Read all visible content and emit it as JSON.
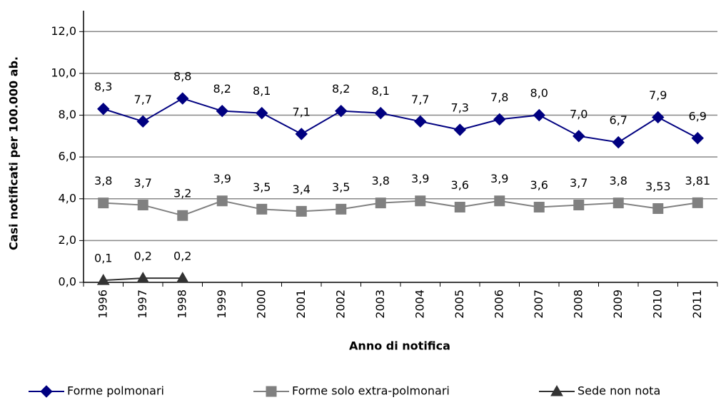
{
  "chart_data": {
    "type": "line",
    "x_label": "Anno di notifica",
    "y_label": "Casi notificati per 100.000 ab.",
    "categories": [
      "1996",
      "1997",
      "1998",
      "1999",
      "2000",
      "2001",
      "2002",
      "2003",
      "2004",
      "2005",
      "2006",
      "2007",
      "2008",
      "2009",
      "2010",
      "2011"
    ],
    "series": [
      {
        "name": "Forme polmonari",
        "color": "#000080",
        "marker": "diamond",
        "values": [
          8.3,
          7.7,
          8.8,
          8.2,
          8.1,
          7.1,
          8.2,
          8.1,
          7.7,
          7.3,
          7.8,
          8.0,
          7.0,
          6.7,
          7.9,
          6.9
        ],
        "value_labels": [
          "8,3",
          "7,7",
          "8,8",
          "8,2",
          "8,1",
          "7,1",
          "8,2",
          "8,1",
          "7,7",
          "7,3",
          "7,8",
          "8,0",
          "7,0",
          "6,7",
          "7,9",
          "6,9"
        ]
      },
      {
        "name": "Forme solo extra-polmonari",
        "color": "#808080",
        "marker": "square",
        "values": [
          3.8,
          3.7,
          3.2,
          3.9,
          3.5,
          3.4,
          3.5,
          3.8,
          3.9,
          3.6,
          3.9,
          3.6,
          3.7,
          3.8,
          3.53,
          3.81
        ],
        "value_labels": [
          "3,8",
          "3,7",
          "3,2",
          "3,9",
          "3,5",
          "3,4",
          "3,5",
          "3,8",
          "3,9",
          "3,6",
          "3,9",
          "3,6",
          "3,7",
          "3,8",
          "3,53",
          "3,81"
        ]
      },
      {
        "name": "Sede non nota",
        "color": "#333333",
        "marker": "triangle",
        "values": [
          0.1,
          0.2,
          0.2,
          null,
          null,
          null,
          null,
          null,
          null,
          null,
          null,
          null,
          null,
          null,
          null,
          null
        ],
        "value_labels": [
          "0,1",
          "0,2",
          "0,2",
          null,
          null,
          null,
          null,
          null,
          null,
          null,
          null,
          null,
          null,
          null,
          null,
          null
        ]
      }
    ],
    "ylim": [
      0,
      13
    ],
    "yticks": [
      {
        "value": 0,
        "label": "0,0"
      },
      {
        "value": 2,
        "label": "2,0"
      },
      {
        "value": 4,
        "label": "4,0"
      },
      {
        "value": 6,
        "label": "6,0"
      },
      {
        "value": 8,
        "label": "8,0"
      },
      {
        "value": 10,
        "label": "10,0"
      },
      {
        "value": 12,
        "label": "12,0"
      }
    ],
    "grid": true,
    "legend": "bottom"
  }
}
